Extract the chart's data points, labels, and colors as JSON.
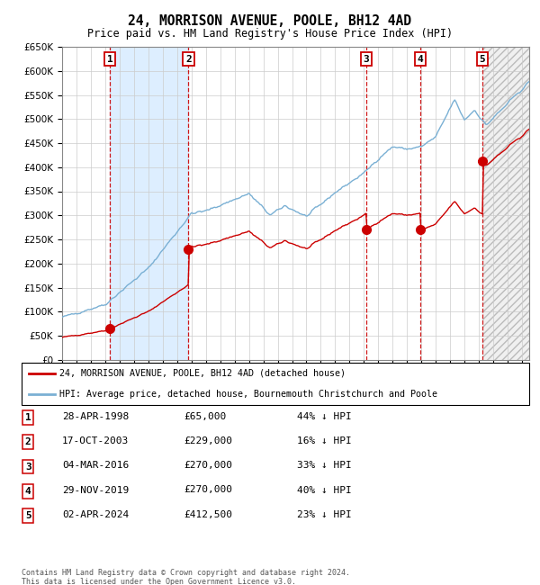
{
  "title": "24, MORRISON AVENUE, POOLE, BH12 4AD",
  "subtitle": "Price paid vs. HM Land Registry's House Price Index (HPI)",
  "ylim": [
    0,
    650000
  ],
  "xlim_start": 1995.0,
  "xlim_end": 2027.5,
  "sale_dates_decimal": [
    1998.32,
    2003.79,
    2016.17,
    2019.91,
    2024.25
  ],
  "sale_prices": [
    65000,
    229000,
    270000,
    270000,
    412500
  ],
  "sale_labels": [
    "1",
    "2",
    "3",
    "4",
    "5"
  ],
  "legend_line1": "24, MORRISON AVENUE, POOLE, BH12 4AD (detached house)",
  "legend_line2": "HPI: Average price, detached house, Bournemouth Christchurch and Poole",
  "table_rows": [
    [
      "1",
      "28-APR-1998",
      "£65,000",
      "44% ↓ HPI"
    ],
    [
      "2",
      "17-OCT-2003",
      "£229,000",
      "16% ↓ HPI"
    ],
    [
      "3",
      "04-MAR-2016",
      "£270,000",
      "33% ↓ HPI"
    ],
    [
      "4",
      "29-NOV-2019",
      "£270,000",
      "40% ↓ HPI"
    ],
    [
      "5",
      "02-APR-2024",
      "£412,500",
      "23% ↓ HPI"
    ]
  ],
  "footnote1": "Contains HM Land Registry data © Crown copyright and database right 2024.",
  "footnote2": "This data is licensed under the Open Government Licence v3.0.",
  "sale_line_color": "#cc0000",
  "hpi_line_color": "#7ab0d4",
  "shade_color": "#ddeeff",
  "grid_color": "#cccccc"
}
